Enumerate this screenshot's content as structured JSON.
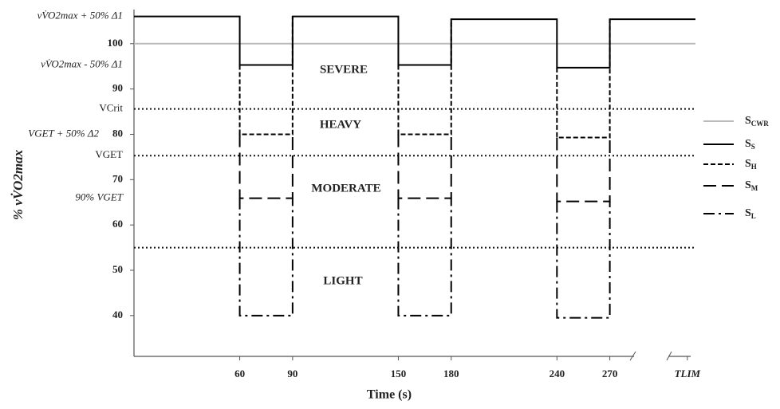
{
  "chart_data": {
    "type": "line",
    "x_label": "Time (s)",
    "y_label": "% vV̇O2max",
    "xlim": [
      0,
      318.6
    ],
    "ylim": [
      31,
      107
    ],
    "xticks": [
      60,
      90,
      150,
      180,
      240,
      270,
      {
        "value": 314,
        "label": "TLIM"
      }
    ],
    "yticks": [
      40,
      50,
      60,
      70,
      80,
      90,
      100
    ],
    "reference_lines": [
      {
        "label": "VCrit",
        "value": 85.6
      },
      {
        "label": "VGET",
        "value": 75.3
      },
      {
        "value": 55
      }
    ],
    "reference_labels": [
      {
        "label": "vV̇O2max + 50% Δ1",
        "value": 106
      },
      {
        "label": "vV̇O2max - 50% Δ1",
        "value": 95.3
      },
      {
        "label": "VGET + 50% Δ2",
        "value": 80
      },
      {
        "label": "90% VGET",
        "value": 65.9
      }
    ],
    "annotations": [
      "SEVERE",
      "HEAVY",
      "MODERATE",
      "LIGHT"
    ],
    "series": [
      {
        "name": "SCWR",
        "color": "#bbbbbb",
        "line_style": "solid",
        "x": [
          0,
          318.6
        ],
        "values": [
          100,
          100
        ]
      },
      {
        "name": "SS",
        "color": "#000000",
        "line_style": "solid",
        "x": [
          0,
          60,
          60,
          90,
          90,
          150,
          150,
          180,
          180,
          240,
          240,
          270,
          270,
          318.6
        ],
        "values": [
          106,
          106,
          95.3,
          95.3,
          106,
          106,
          95.3,
          95.3,
          105.4,
          105.4,
          94.7,
          94.7,
          105.4,
          105.4
        ]
      },
      {
        "name": "SH",
        "color": "#000000",
        "line_style": "dashed",
        "x": [
          60,
          60,
          90,
          90,
          null,
          150,
          150,
          180,
          180,
          null,
          240,
          240,
          270,
          270
        ],
        "values": [
          95.3,
          80,
          80,
          106,
          null,
          95.3,
          80,
          80,
          105.4,
          null,
          94.7,
          79.3,
          79.3,
          105.4
        ]
      },
      {
        "name": "SM",
        "color": "#000000",
        "line_style": "longdash",
        "x": [
          60,
          60,
          90,
          90,
          null,
          150,
          150,
          180,
          180,
          null,
          240,
          240,
          270,
          270
        ],
        "values": [
          80,
          65.9,
          65.9,
          80,
          null,
          80,
          65.9,
          65.9,
          80,
          null,
          79.3,
          65.2,
          65.2,
          79.3
        ]
      },
      {
        "name": "SL",
        "color": "#000000",
        "line_style": "dashdot",
        "x": [
          60,
          60,
          90,
          90,
          null,
          150,
          150,
          180,
          180,
          null,
          240,
          240,
          270,
          270
        ],
        "values": [
          65.9,
          40,
          40,
          65.9,
          null,
          65.9,
          40,
          40,
          65.9,
          null,
          65.2,
          39.5,
          39.5,
          65.2
        ]
      }
    ]
  }
}
